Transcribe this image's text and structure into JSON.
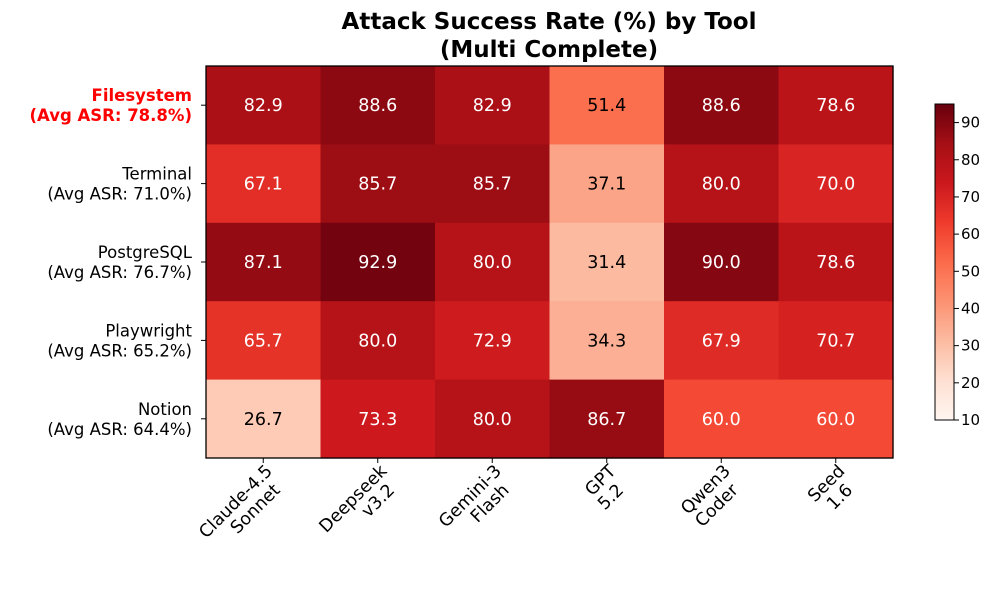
{
  "chart_data": {
    "type": "heatmap",
    "title": [
      "Attack Success Rate (%) by Tool",
      "(Multi Complete)"
    ],
    "rows": [
      {
        "name": "Filesystem",
        "avg": "(Avg ASR: 78.8%)",
        "highlight": true
      },
      {
        "name": "Terminal",
        "avg": "(Avg ASR: 71.0%)",
        "highlight": false
      },
      {
        "name": "PostgreSQL",
        "avg": "(Avg ASR: 76.7%)",
        "highlight": false
      },
      {
        "name": "Playwright",
        "avg": "(Avg ASR: 65.2%)",
        "highlight": false
      },
      {
        "name": "Notion",
        "avg": "(Avg ASR: 64.4%)",
        "highlight": false
      }
    ],
    "columns": [
      [
        "Claude-4.5",
        "Sonnet"
      ],
      [
        "Deepseek",
        "v3.2"
      ],
      [
        "Gemini-3",
        "Flash"
      ],
      [
        "GPT",
        "5.2"
      ],
      [
        "Qwen3",
        "Coder"
      ],
      [
        "Seed",
        "1.6"
      ]
    ],
    "values": [
      [
        82.9,
        88.6,
        82.9,
        51.4,
        88.6,
        78.6
      ],
      [
        67.1,
        85.7,
        85.7,
        37.1,
        80.0,
        70.0
      ],
      [
        87.1,
        92.9,
        80.0,
        31.4,
        90.0,
        78.6
      ],
      [
        65.7,
        80.0,
        72.9,
        34.3,
        67.9,
        70.7
      ],
      [
        26.7,
        73.3,
        80.0,
        86.7,
        60.0,
        60.0
      ]
    ],
    "colormap": "Reds",
    "vmin": 10,
    "vmax": 95,
    "colorbar_ticks": [
      10,
      20,
      30,
      40,
      50,
      60,
      70,
      80,
      90
    ],
    "highlight_color": "#ff0000"
  }
}
